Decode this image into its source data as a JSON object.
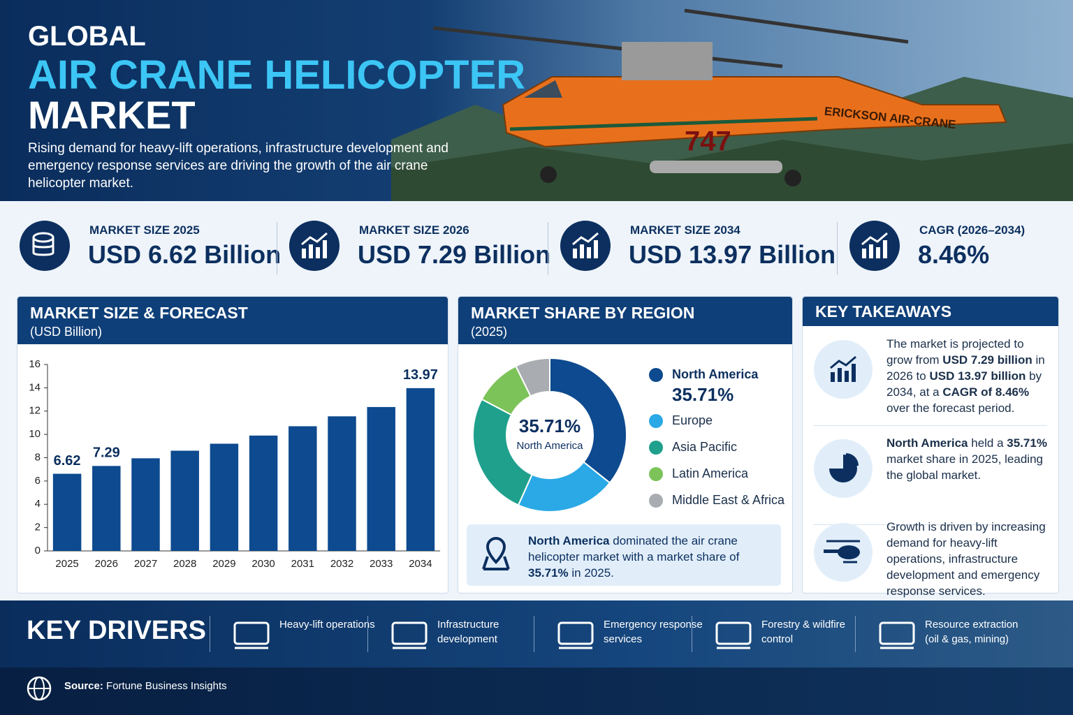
{
  "header": {
    "title_line1": "GLOBAL",
    "title_line2": "AIR CRANE HELICOPTER",
    "title_line3": "MARKET",
    "subtitle": "Rising demand for heavy-lift operations, infrastructure development and emergency response services are driving the growth of the air crane helicopter market.",
    "helicopter_label": "ERICKSON AIR-CRANE",
    "helicopter_number": "747"
  },
  "stats": [
    {
      "label": "MARKET SIZE 2025",
      "value": "USD 6.62 Billion"
    },
    {
      "label": "MARKET SIZE 2026",
      "value": "USD 7.29 Billion"
    },
    {
      "label": "MARKET SIZE 2034",
      "value": "USD 13.97 Billion"
    },
    {
      "label": "CAGR (2026–2034)",
      "value": "8.46%"
    }
  ],
  "chart_data": [
    {
      "type": "bar",
      "title": "MARKET SIZE & FORECAST",
      "subtitle": "(USD Billion)",
      "categories": [
        "2025",
        "2026",
        "2027",
        "2028",
        "2029",
        "2030",
        "2031",
        "2032",
        "2033",
        "2034"
      ],
      "values": [
        6.62,
        7.29,
        7.95,
        8.6,
        9.2,
        9.9,
        10.7,
        11.55,
        12.35,
        13.97
      ],
      "value_labels": [
        "6.62",
        "7.29",
        null,
        null,
        null,
        null,
        null,
        null,
        null,
        "13.97"
      ],
      "color": "#0d4a8f",
      "ylim": [
        0,
        16
      ],
      "yticks": [
        0,
        2,
        4,
        6,
        8,
        10,
        12,
        14,
        16
      ],
      "grid": false
    },
    {
      "type": "pie",
      "title": "MARKET SHARE BY REGION",
      "subtitle": "(2025)",
      "categories": [
        "North America",
        "Europe",
        "Asia Pacific",
        "Latin America",
        "Middle East & Africa"
      ],
      "values": [
        35.71,
        21,
        26,
        10,
        7.29
      ],
      "value_labels": [
        "35.71%",
        null,
        null,
        null,
        null
      ],
      "colors": [
        "#0d4a8f",
        "#2aa9e6",
        "#1fa08c",
        "#7cc35a",
        "#a9adb2"
      ],
      "donut": true
    }
  ],
  "share_note": {
    "parts": [
      {
        "text": "North America",
        "bold": true
      },
      {
        "text": " dominated the air crane helicopter market with a market share of ",
        "bold": false
      },
      {
        "text": "35.71%",
        "bold": true
      },
      {
        "text": " in 2025.",
        "bold": false
      }
    ]
  },
  "takeaways": {
    "title": "KEY TAKEAWAYS",
    "items": [
      {
        "parts": [
          {
            "text": "The market is projected to grow from ",
            "bold": false
          },
          {
            "text": "USD 7.29 billion",
            "bold": true
          },
          {
            "text": " in 2026 to ",
            "bold": false
          },
          {
            "text": "USD 13.97 billion",
            "bold": true
          },
          {
            "text": " by 2034, at a ",
            "bold": false
          },
          {
            "text": "CAGR of 8.46%",
            "bold": true
          },
          {
            "text": " over the forecast period.",
            "bold": false
          }
        ]
      },
      {
        "parts": [
          {
            "text": "North America",
            "bold": true
          },
          {
            "text": " held a ",
            "bold": false
          },
          {
            "text": "35.71%",
            "bold": true
          },
          {
            "text": " market share in 2025, leading the global market.",
            "bold": false
          }
        ]
      },
      {
        "parts": [
          {
            "text": "Growth is driven by increasing demand for heavy-lift operations, infrastructure development and emergency response services.",
            "bold": false
          }
        ]
      }
    ]
  },
  "drivers": {
    "title": "KEY DRIVERS",
    "items": [
      "Heavy-lift operations",
      "Infrastructure development",
      "Emergency response services",
      "Forestry & wildfire control",
      "Resource extraction (oil & gas, mining)"
    ]
  },
  "source": {
    "label": "Source:",
    "text": "Fortune Business Insights"
  }
}
